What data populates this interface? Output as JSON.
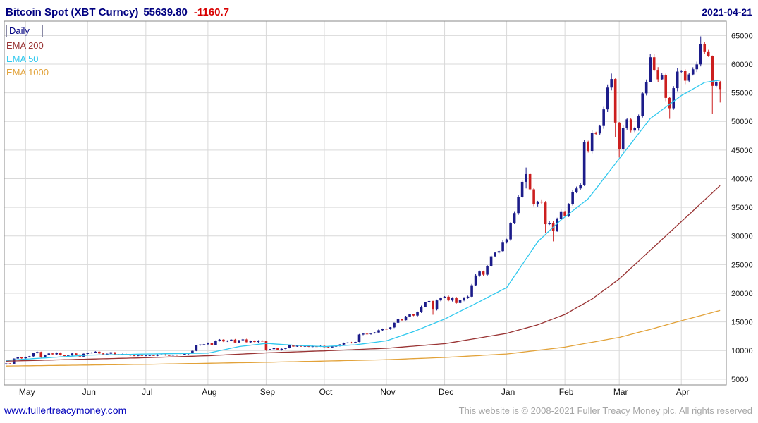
{
  "header": {
    "instrument": "Bitcoin Spot (XBT Curncy)",
    "price": "55639.80",
    "change": "-1160.7",
    "date": "2021-04-21"
  },
  "legend": {
    "items": [
      {
        "label": "Daily",
        "color": "#000080",
        "boxed": true
      },
      {
        "label": "EMA 200",
        "color": "#993333",
        "boxed": false
      },
      {
        "label": "EMA 50",
        "color": "#2fc8ee",
        "boxed": false
      },
      {
        "label": "EMA 1000",
        "color": "#e2a239",
        "boxed": false
      }
    ]
  },
  "footer": {
    "link": "www.fullertreacymoney.com",
    "copyright": "This website is © 2008-2021 Fuller Treacy Money plc. All rights reserved"
  },
  "chart_data": {
    "type": "candlestick",
    "title": "Bitcoin Spot (XBT Curncy)",
    "xlabel": "",
    "ylabel": "",
    "grid": true,
    "legend_position": "top-left",
    "x_tick_labels": [
      "May",
      "Jun",
      "Jul",
      "Aug",
      "Sep",
      "Oct",
      "Nov",
      "Dec",
      "Jan",
      "Feb",
      "Mar",
      "Apr"
    ],
    "x_tick_indices": [
      5,
      21,
      36,
      52,
      67,
      82,
      98,
      113,
      129,
      144,
      158,
      174
    ],
    "y_ticks": [
      5000,
      10000,
      15000,
      20000,
      25000,
      30000,
      35000,
      40000,
      45000,
      50000,
      55000,
      60000,
      65000
    ],
    "y_range": [
      4000,
      67500
    ],
    "up_color": "#1c1c8a",
    "down_color": "#cc1f1f",
    "first_open": 7600,
    "closes": [
      7750,
      7700,
      8600,
      8800,
      8650,
      8850,
      9000,
      9550,
      9750,
      8800,
      9250,
      9500,
      9350,
      9650,
      9200,
      9050,
      9150,
      9500,
      9300,
      8950,
      9450,
      9550,
      9650,
      9800,
      9500,
      9350,
      9450,
      9700,
      9350,
      9250,
      9400,
      9300,
      9150,
      9100,
      9200,
      9150,
      9150,
      9200,
      9100,
      9250,
      9300,
      9200,
      9150,
      9250,
      9200,
      9300,
      9400,
      9550,
      9950,
      10900,
      11050,
      11100,
      11300,
      11000,
      11700,
      11900,
      11600,
      11750,
      11900,
      11400,
      11800,
      11950,
      11450,
      11650,
      11500,
      11700,
      11650,
      10150,
      10250,
      10400,
      10100,
      10300,
      10450,
      10900,
      10700,
      10850,
      10700,
      10800,
      10650,
      10750,
      10700,
      10800,
      10600,
      10550,
      10700,
      10800,
      11050,
      11300,
      11400,
      11350,
      11500,
      12800,
      12950,
      12900,
      13050,
      13150,
      13550,
      13800,
      13750,
      14050,
      14850,
      15500,
      15300,
      15950,
      16300,
      16100,
      16700,
      17650,
      18400,
      18650,
      17150,
      18750,
      19200,
      19400,
      18750,
      19200,
      18300,
      18800,
      19150,
      19400,
      21400,
      23100,
      23800,
      23250,
      24700,
      26450,
      27100,
      27350,
      28950,
      29400,
      32200,
      34000,
      36850,
      39450,
      40800,
      38150,
      35500,
      36000,
      35850,
      32050,
      32300,
      30850,
      33000,
      34300,
      33550,
      35500,
      37600,
      38300,
      38900,
      46400,
      44850,
      47950,
      47900,
      49200,
      52100,
      55900,
      57400,
      49800,
      45200,
      48900,
      50350,
      48400,
      48900,
      50950,
      54900,
      56800,
      61200,
      59000,
      57350,
      58100,
      54100,
      52300,
      55800,
      58700,
      58800,
      57100,
      58200,
      59100,
      59950,
      63500,
      62100,
      61450,
      56200,
      56800.5,
      55639.8
    ],
    "wick_overrides": {
      "67": [
        11700,
        9950
      ],
      "110": [
        18700,
        16250
      ],
      "134": [
        41950,
        38300
      ],
      "139": [
        36100,
        30550
      ],
      "141": [
        32600,
        29050
      ],
      "156": [
        58350,
        55400
      ],
      "157": [
        57500,
        47300
      ],
      "158": [
        49900,
        43700
      ],
      "166": [
        61800,
        58600
      ],
      "171": [
        54300,
        50450
      ],
      "179": [
        64850,
        59600
      ],
      "182": [
        61500,
        51300
      ],
      "184": [
        57050,
        53300
      ]
    },
    "series": [
      {
        "name": "EMA 1000",
        "color": "#e2a239",
        "anchors": [
          [
            0,
            7300
          ],
          [
            36,
            7600
          ],
          [
            67,
            7950
          ],
          [
            98,
            8400
          ],
          [
            113,
            8800
          ],
          [
            129,
            9400
          ],
          [
            144,
            10600
          ],
          [
            158,
            12300
          ],
          [
            166,
            13700
          ],
          [
            174,
            15200
          ],
          [
            184,
            17000
          ]
        ]
      },
      {
        "name": "EMA 200",
        "color": "#993333",
        "anchors": [
          [
            0,
            8150
          ],
          [
            21,
            8500
          ],
          [
            36,
            8750
          ],
          [
            52,
            9100
          ],
          [
            67,
            9600
          ],
          [
            82,
            9950
          ],
          [
            98,
            10400
          ],
          [
            113,
            11200
          ],
          [
            129,
            13000
          ],
          [
            137,
            14500
          ],
          [
            144,
            16300
          ],
          [
            151,
            19000
          ],
          [
            158,
            22500
          ],
          [
            166,
            27500
          ],
          [
            174,
            32500
          ],
          [
            184,
            38800
          ]
        ]
      },
      {
        "name": "EMA 50",
        "color": "#2fc8ee",
        "anchors": [
          [
            0,
            8300
          ],
          [
            5,
            8500
          ],
          [
            21,
            9200
          ],
          [
            36,
            9400
          ],
          [
            52,
            9550
          ],
          [
            60,
            10700
          ],
          [
            67,
            11250
          ],
          [
            75,
            10900
          ],
          [
            82,
            10700
          ],
          [
            90,
            11000
          ],
          [
            98,
            11700
          ],
          [
            105,
            13300
          ],
          [
            113,
            15500
          ],
          [
            121,
            18200
          ],
          [
            129,
            21000
          ],
          [
            137,
            29000
          ],
          [
            143,
            32800
          ],
          [
            150,
            36500
          ],
          [
            158,
            43500
          ],
          [
            166,
            50500
          ],
          [
            174,
            54500
          ],
          [
            180,
            56800
          ],
          [
            184,
            57200
          ]
        ]
      }
    ]
  }
}
